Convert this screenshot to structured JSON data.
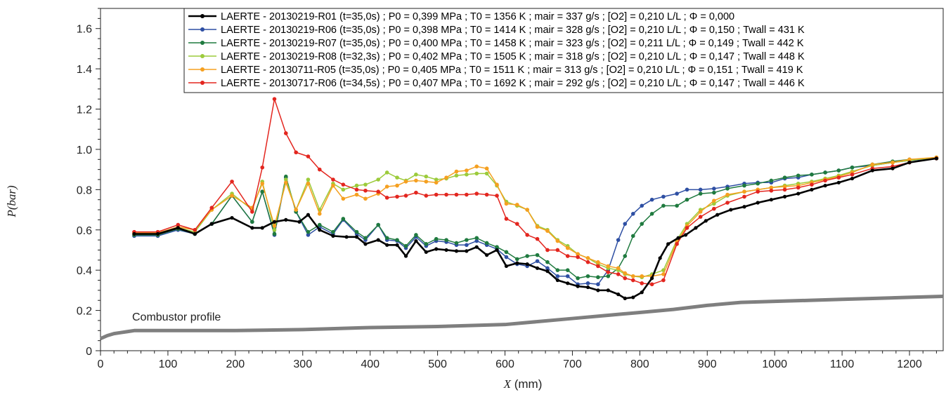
{
  "chart_data": {
    "type": "line",
    "xlabel_var": "X",
    "xlabel_unit": " (mm)",
    "ylabel": "P(bar)",
    "xlim": [
      0,
      1250
    ],
    "ylim": [
      0,
      1.7
    ],
    "x_ticks": [
      0,
      100,
      200,
      300,
      400,
      500,
      600,
      700,
      800,
      900,
      1000,
      1100,
      1200
    ],
    "y_ticks": [
      0,
      0.2,
      0.4,
      0.6,
      0.8,
      1.0,
      1.2,
      1.4,
      1.6
    ],
    "y_tick_labels": [
      "0",
      "0.2",
      "0.4",
      "0.6",
      "0.8",
      "1.0",
      "1.2",
      "1.4",
      "1.6"
    ],
    "legend_position": "top-right",
    "grid": false,
    "annotation": "Combustor profile",
    "series": [
      {
        "name": "LAERTE - 20130219-R01 (t=35,0s) ; P0 = 0,399 MPa ; T0 = 1356 K ; mair = 337 g/s ; [O2] = 0,210 L/L ; Φ = 0,000",
        "color": "#000000",
        "x": [
          50,
          85,
          115,
          140,
          165,
          195,
          225,
          240,
          258,
          275,
          295,
          308,
          325,
          345,
          365,
          380,
          393,
          412,
          425,
          440,
          453,
          468,
          483,
          498,
          513,
          528,
          543,
          558,
          573,
          588,
          602,
          618,
          633,
          648,
          663,
          678,
          693,
          708,
          723,
          738,
          753,
          768,
          778,
          790,
          803,
          818,
          830,
          842,
          857,
          868,
          883,
          898,
          915,
          935,
          955,
          975,
          995,
          1015,
          1035,
          1055,
          1075,
          1095,
          1115,
          1145,
          1175,
          1200,
          1240
        ],
        "y": [
          0.58,
          0.58,
          0.61,
          0.58,
          0.63,
          0.66,
          0.61,
          0.61,
          0.64,
          0.65,
          0.64,
          0.675,
          0.6,
          0.57,
          0.565,
          0.565,
          0.53,
          0.55,
          0.525,
          0.525,
          0.47,
          0.545,
          0.49,
          0.505,
          0.5,
          0.495,
          0.495,
          0.515,
          0.475,
          0.5,
          0.42,
          0.435,
          0.43,
          0.41,
          0.395,
          0.35,
          0.335,
          0.32,
          0.315,
          0.3,
          0.3,
          0.28,
          0.26,
          0.265,
          0.29,
          0.36,
          0.46,
          0.53,
          0.56,
          0.575,
          0.61,
          0.645,
          0.675,
          0.7,
          0.715,
          0.735,
          0.75,
          0.765,
          0.78,
          0.8,
          0.82,
          0.835,
          0.855,
          0.895,
          0.905,
          0.935,
          0.955
        ]
      },
      {
        "name": "LAERTE - 20130219-R06 (t=35,0s) ; P0 = 0,398 MPa ; T0 = 1414 K ; mair = 328 g/s ; [O2] = 0,210 L/L ; Φ = 0,150 ; Twall = 431 K",
        "color": "#2e4fa3",
        "x": [
          50,
          85,
          115,
          140,
          165,
          195,
          225,
          240,
          258,
          275,
          290,
          308,
          325,
          345,
          360,
          380,
          393,
          412,
          425,
          440,
          453,
          468,
          483,
          498,
          513,
          528,
          543,
          558,
          573,
          588,
          602,
          618,
          633,
          648,
          663,
          678,
          693,
          708,
          723,
          738,
          753,
          768,
          778,
          790,
          803,
          818,
          835,
          855,
          870,
          890,
          910,
          930,
          955,
          975,
          995,
          1015,
          1035,
          1055,
          1075,
          1095,
          1115,
          1145,
          1175,
          1200,
          1240
        ],
        "y": [
          0.57,
          0.57,
          0.6,
          0.58,
          0.63,
          0.77,
          0.64,
          0.79,
          0.575,
          0.86,
          0.69,
          0.575,
          0.615,
          0.58,
          0.65,
          0.58,
          0.55,
          0.625,
          0.55,
          0.545,
          0.51,
          0.565,
          0.52,
          0.545,
          0.54,
          0.525,
          0.525,
          0.545,
          0.525,
          0.505,
          0.465,
          0.43,
          0.42,
          0.445,
          0.41,
          0.37,
          0.37,
          0.33,
          0.335,
          0.33,
          0.4,
          0.55,
          0.63,
          0.68,
          0.72,
          0.75,
          0.765,
          0.78,
          0.8,
          0.8,
          0.805,
          0.815,
          0.83,
          0.835,
          0.835,
          0.855,
          0.86,
          0.875,
          0.885,
          0.895,
          0.91,
          0.92,
          0.935,
          0.945,
          0.955
        ]
      },
      {
        "name": "LAERTE - 20130219-R07 (t=35,0s) ; P0 = 0,400 MPa ; T0 = 1458 K ; mair = 323 g/s ; [O2] = 0,211 L/L ; Φ = 0,149 ; Twall = 442 K",
        "color": "#1f7a3f",
        "x": [
          50,
          85,
          115,
          140,
          165,
          195,
          225,
          240,
          258,
          275,
          290,
          308,
          325,
          345,
          360,
          380,
          393,
          412,
          425,
          440,
          453,
          468,
          483,
          498,
          513,
          528,
          543,
          558,
          573,
          588,
          602,
          618,
          633,
          648,
          663,
          678,
          693,
          708,
          723,
          738,
          753,
          768,
          778,
          790,
          803,
          818,
          835,
          855,
          870,
          890,
          910,
          930,
          955,
          975,
          995,
          1015,
          1035,
          1055,
          1075,
          1095,
          1115,
          1145,
          1175,
          1200,
          1240
        ],
        "y": [
          0.575,
          0.575,
          0.605,
          0.58,
          0.63,
          0.77,
          0.64,
          0.79,
          0.58,
          0.865,
          0.69,
          0.59,
          0.625,
          0.59,
          0.655,
          0.59,
          0.56,
          0.625,
          0.56,
          0.55,
          0.52,
          0.575,
          0.53,
          0.555,
          0.55,
          0.535,
          0.55,
          0.56,
          0.535,
          0.515,
          0.49,
          0.455,
          0.47,
          0.475,
          0.44,
          0.4,
          0.4,
          0.36,
          0.37,
          0.365,
          0.37,
          0.41,
          0.47,
          0.57,
          0.63,
          0.68,
          0.72,
          0.72,
          0.75,
          0.78,
          0.785,
          0.805,
          0.82,
          0.83,
          0.845,
          0.86,
          0.87,
          0.875,
          0.885,
          0.895,
          0.91,
          0.925,
          0.94,
          0.95,
          0.955
        ]
      },
      {
        "name": "LAERTE - 20130219-R08 (t=32,3s) ; P0 = 0,402 MPa ; T0 = 1505 K ; mair = 318 g/s ; [O2] = 0,210 L/L ; Φ = 0,147 ; Twall = 448 K",
        "color": "#9ccb3b",
        "x": [
          50,
          85,
          115,
          140,
          165,
          195,
          225,
          240,
          258,
          275,
          290,
          308,
          325,
          345,
          360,
          380,
          393,
          412,
          425,
          440,
          453,
          468,
          483,
          498,
          513,
          528,
          543,
          558,
          573,
          588,
          602,
          618,
          633,
          648,
          663,
          678,
          693,
          708,
          723,
          738,
          753,
          768,
          778,
          790,
          803,
          818,
          835,
          855,
          870,
          890,
          910,
          930,
          955,
          975,
          995,
          1015,
          1035,
          1055,
          1075,
          1095,
          1115,
          1145,
          1175,
          1200,
          1240
        ],
        "y": [
          0.58,
          0.58,
          0.61,
          0.59,
          0.7,
          0.78,
          0.7,
          0.84,
          0.6,
          0.85,
          0.7,
          0.85,
          0.7,
          0.83,
          0.8,
          0.82,
          0.825,
          0.85,
          0.885,
          0.86,
          0.845,
          0.875,
          0.865,
          0.85,
          0.855,
          0.87,
          0.875,
          0.88,
          0.88,
          0.82,
          0.74,
          0.72,
          0.7,
          0.62,
          0.6,
          0.55,
          0.52,
          0.48,
          0.46,
          0.43,
          0.41,
          0.4,
          0.38,
          0.37,
          0.365,
          0.38,
          0.4,
          0.55,
          0.63,
          0.7,
          0.73,
          0.77,
          0.79,
          0.8,
          0.81,
          0.82,
          0.83,
          0.84,
          0.855,
          0.87,
          0.89,
          0.92,
          0.935,
          0.945,
          0.96
        ]
      },
      {
        "name": "LAERTE - 20130711-R05 (t=35,0s) ; P0 = 0,405 MPa ; T0 = 1511 K ; mair = 313 g/s ; [O2] = 0,210 L/L ; Φ = 0,151 ; Twall = 419 K",
        "color": "#f5a020",
        "x": [
          50,
          85,
          115,
          140,
          165,
          195,
          225,
          240,
          258,
          275,
          290,
          308,
          325,
          345,
          360,
          380,
          393,
          412,
          425,
          440,
          453,
          468,
          483,
          498,
          513,
          528,
          543,
          558,
          573,
          588,
          602,
          618,
          633,
          648,
          663,
          678,
          693,
          708,
          723,
          738,
          753,
          768,
          778,
          790,
          803,
          818,
          835,
          855,
          870,
          890,
          910,
          930,
          955,
          975,
          995,
          1015,
          1035,
          1055,
          1075,
          1095,
          1115,
          1145,
          1175,
          1200,
          1240
        ],
        "y": [
          0.585,
          0.585,
          0.615,
          0.6,
          0.7,
          0.77,
          0.71,
          0.83,
          0.62,
          0.835,
          0.7,
          0.83,
          0.68,
          0.82,
          0.755,
          0.775,
          0.755,
          0.78,
          0.815,
          0.82,
          0.84,
          0.845,
          0.84,
          0.835,
          0.86,
          0.89,
          0.895,
          0.915,
          0.905,
          0.825,
          0.73,
          0.725,
          0.7,
          0.615,
          0.595,
          0.545,
          0.51,
          0.48,
          0.46,
          0.44,
          0.42,
          0.41,
          0.385,
          0.37,
          0.37,
          0.37,
          0.38,
          0.54,
          0.62,
          0.69,
          0.745,
          0.775,
          0.79,
          0.8,
          0.81,
          0.815,
          0.82,
          0.835,
          0.85,
          0.865,
          0.885,
          0.925,
          0.935,
          0.95,
          0.96
        ]
      },
      {
        "name": "LAERTE - 20130717-R06 (t=34,5s) ; P0 = 0,407 MPa ; T0 = 1692 K ; mair = 292 g/s ; [O2] = 0,210 L/L ; Φ = 0,147 ; Twall = 446 K",
        "color": "#e3261f",
        "x": [
          50,
          85,
          115,
          140,
          165,
          195,
          225,
          240,
          258,
          275,
          290,
          308,
          325,
          345,
          360,
          380,
          393,
          412,
          425,
          440,
          453,
          468,
          483,
          498,
          513,
          528,
          543,
          558,
          573,
          588,
          602,
          618,
          633,
          648,
          663,
          678,
          693,
          708,
          723,
          738,
          753,
          768,
          778,
          790,
          803,
          818,
          835,
          855,
          870,
          890,
          910,
          930,
          955,
          975,
          995,
          1015,
          1035,
          1055,
          1075,
          1095,
          1115,
          1145,
          1175,
          1200,
          1240
        ],
        "y": [
          0.59,
          0.59,
          0.625,
          0.6,
          0.71,
          0.84,
          0.69,
          0.91,
          1.25,
          1.08,
          0.985,
          0.965,
          0.9,
          0.85,
          0.825,
          0.8,
          0.795,
          0.79,
          0.76,
          0.765,
          0.77,
          0.785,
          0.77,
          0.775,
          0.775,
          0.775,
          0.775,
          0.78,
          0.775,
          0.77,
          0.655,
          0.63,
          0.575,
          0.555,
          0.5,
          0.5,
          0.47,
          0.465,
          0.44,
          0.42,
          0.39,
          0.38,
          0.36,
          0.35,
          0.335,
          0.33,
          0.35,
          0.53,
          0.61,
          0.665,
          0.705,
          0.735,
          0.765,
          0.79,
          0.795,
          0.8,
          0.81,
          0.825,
          0.845,
          0.86,
          0.875,
          0.905,
          0.915,
          0.935,
          0.955
        ]
      },
      {
        "name": "Combustor profile",
        "color": "#7f7f7f",
        "x": [
          0,
          10,
          20,
          30,
          40,
          50,
          100,
          200,
          300,
          400,
          500,
          600,
          650,
          700,
          750,
          800,
          850,
          900,
          950,
          1000,
          1050,
          1100,
          1150,
          1200,
          1250
        ],
        "y": [
          0.06,
          0.075,
          0.085,
          0.09,
          0.095,
          0.1,
          0.1,
          0.1,
          0.105,
          0.115,
          0.12,
          0.13,
          0.145,
          0.16,
          0.175,
          0.19,
          0.205,
          0.225,
          0.24,
          0.245,
          0.25,
          0.255,
          0.26,
          0.265,
          0.27
        ]
      }
    ]
  }
}
